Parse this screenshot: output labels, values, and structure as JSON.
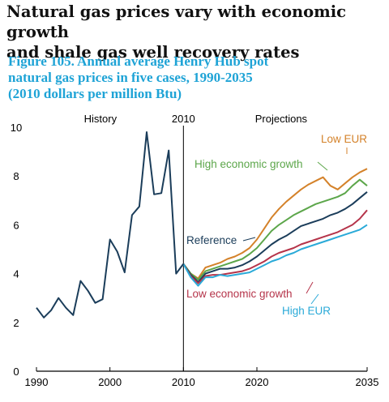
{
  "headline": {
    "line1": "Natural gas prices vary with economic growth",
    "line2": "and shale gas well recovery rates"
  },
  "figure": {
    "line1": "Figure 105. Annual average Henry Hub spot",
    "line2": "natural gas prices in five cases, 1990-2035",
    "line3": "(2010 dollars per million Btu)"
  },
  "chart_data": {
    "type": "line",
    "title": "",
    "xlabel": "",
    "ylabel": "",
    "xlim": [
      1990,
      2035
    ],
    "ylim": [
      0,
      10
    ],
    "x_ticks": [
      1990,
      2000,
      2010,
      2020,
      2035
    ],
    "y_ticks": [
      0,
      2,
      4,
      6,
      8,
      10
    ],
    "grid": false,
    "period_labels": {
      "history": "History",
      "divider": "2010",
      "projections": "Projections"
    },
    "divider_year": 2010,
    "series": [
      {
        "name": "History",
        "color": "#1b3d5a",
        "x": [
          1990,
          1991,
          1992,
          1993,
          1994,
          1995,
          1996,
          1997,
          1998,
          1999,
          2000,
          2001,
          2002,
          2003,
          2004,
          2005,
          2006,
          2007,
          2008,
          2009,
          2010
        ],
        "values": [
          2.6,
          2.2,
          2.5,
          3.0,
          2.6,
          2.3,
          3.7,
          3.3,
          2.8,
          2.95,
          5.4,
          4.9,
          4.05,
          6.4,
          6.75,
          9.8,
          7.25,
          7.3,
          9.05,
          4.0,
          4.4
        ]
      },
      {
        "name": "Low EUR",
        "color": "#d4822a",
        "x": [
          2010,
          2011,
          2012,
          2013,
          2014,
          2015,
          2016,
          2017,
          2018,
          2019,
          2020,
          2021,
          2022,
          2023,
          2024,
          2025,
          2026,
          2027,
          2028,
          2029,
          2030,
          2031,
          2032,
          2033,
          2034,
          2035
        ],
        "values": [
          4.4,
          4.0,
          3.8,
          4.25,
          4.35,
          4.45,
          4.6,
          4.7,
          4.85,
          5.05,
          5.4,
          5.85,
          6.3,
          6.65,
          6.95,
          7.2,
          7.45,
          7.65,
          7.8,
          7.95,
          7.6,
          7.45,
          7.7,
          7.95,
          8.15,
          8.3
        ]
      },
      {
        "name": "High economic growth",
        "color": "#5ca64a",
        "x": [
          2010,
          2011,
          2012,
          2013,
          2014,
          2015,
          2016,
          2017,
          2018,
          2019,
          2020,
          2021,
          2022,
          2023,
          2024,
          2025,
          2026,
          2027,
          2028,
          2029,
          2030,
          2031,
          2032,
          2033,
          2034,
          2035
        ],
        "values": [
          4.4,
          4.0,
          3.75,
          4.1,
          4.2,
          4.3,
          4.4,
          4.5,
          4.6,
          4.8,
          5.05,
          5.4,
          5.75,
          6.0,
          6.2,
          6.4,
          6.55,
          6.7,
          6.85,
          6.95,
          7.05,
          7.15,
          7.3,
          7.6,
          7.85,
          7.6
        ]
      },
      {
        "name": "Reference",
        "color": "#1b3d5a",
        "x": [
          2010,
          2011,
          2012,
          2013,
          2014,
          2015,
          2016,
          2017,
          2018,
          2019,
          2020,
          2021,
          2022,
          2023,
          2024,
          2025,
          2026,
          2027,
          2028,
          2029,
          2030,
          2031,
          2032,
          2033,
          2034,
          2035
        ],
        "values": [
          4.4,
          3.95,
          3.65,
          4.0,
          4.1,
          4.2,
          4.2,
          4.25,
          4.35,
          4.5,
          4.7,
          4.95,
          5.2,
          5.4,
          5.55,
          5.75,
          5.95,
          6.05,
          6.15,
          6.25,
          6.4,
          6.5,
          6.65,
          6.85,
          7.1,
          7.35
        ]
      },
      {
        "name": "Low economic growth",
        "color": "#b5344a",
        "x": [
          2010,
          2011,
          2012,
          2013,
          2014,
          2015,
          2016,
          2017,
          2018,
          2019,
          2020,
          2021,
          2022,
          2023,
          2024,
          2025,
          2026,
          2027,
          2028,
          2029,
          2030,
          2031,
          2032,
          2033,
          2034,
          2035
        ],
        "values": [
          4.4,
          3.9,
          3.6,
          3.9,
          3.95,
          3.95,
          4.0,
          4.05,
          4.1,
          4.2,
          4.35,
          4.5,
          4.7,
          4.85,
          4.95,
          5.05,
          5.2,
          5.3,
          5.4,
          5.5,
          5.6,
          5.7,
          5.85,
          6.0,
          6.25,
          6.6
        ]
      },
      {
        "name": "High EUR",
        "color": "#2aaad8",
        "x": [
          2010,
          2011,
          2012,
          2013,
          2014,
          2015,
          2016,
          2017,
          2018,
          2019,
          2020,
          2021,
          2022,
          2023,
          2024,
          2025,
          2026,
          2027,
          2028,
          2029,
          2030,
          2031,
          2032,
          2033,
          2034,
          2035
        ],
        "values": [
          4.4,
          3.85,
          3.5,
          3.85,
          3.85,
          3.95,
          3.9,
          3.95,
          4.0,
          4.05,
          4.2,
          4.35,
          4.5,
          4.6,
          4.75,
          4.85,
          5.0,
          5.1,
          5.2,
          5.3,
          5.4,
          5.5,
          5.6,
          5.7,
          5.8,
          6.0
        ]
      }
    ]
  }
}
